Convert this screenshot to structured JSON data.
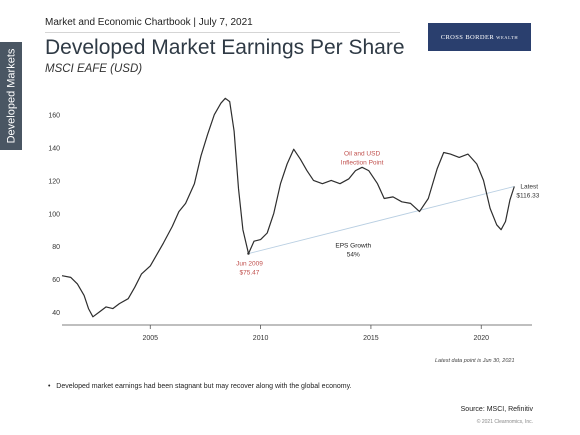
{
  "side_tab": "Developed Markets",
  "header": {
    "chartbook": "Market and Economic Chartbook | July 7, 2021",
    "logo_main": "CROSS BORDER",
    "logo_sub": "WEALTH"
  },
  "chart_data": {
    "type": "line",
    "title": "Developed Market Earnings Per Share",
    "subtitle": "MSCI EAFE (USD)",
    "xlim": [
      2001.0,
      2022.3
    ],
    "ylim": [
      32,
      172
    ],
    "y_ticks": [
      40,
      60,
      80,
      100,
      120,
      140,
      160
    ],
    "x_ticks": [
      2005,
      2010,
      2015,
      2020
    ],
    "grid": false,
    "series": [
      {
        "values": [
          [
            2001.0,
            62
          ],
          [
            2001.4,
            61
          ],
          [
            2001.7,
            57
          ],
          [
            2002.0,
            50
          ],
          [
            2002.2,
            42
          ],
          [
            2002.4,
            37
          ],
          [
            2002.7,
            40
          ],
          [
            2003.0,
            43
          ],
          [
            2003.3,
            42
          ],
          [
            2003.6,
            45
          ],
          [
            2004.0,
            48
          ],
          [
            2004.3,
            55
          ],
          [
            2004.6,
            63
          ],
          [
            2005.0,
            68
          ],
          [
            2005.3,
            75
          ],
          [
            2005.6,
            82
          ],
          [
            2006.0,
            92
          ],
          [
            2006.3,
            101
          ],
          [
            2006.6,
            106
          ],
          [
            2007.0,
            118
          ],
          [
            2007.3,
            135
          ],
          [
            2007.6,
            148
          ],
          [
            2007.9,
            160
          ],
          [
            2008.2,
            167
          ],
          [
            2008.4,
            170
          ],
          [
            2008.6,
            168
          ],
          [
            2008.8,
            150
          ],
          [
            2009.0,
            115
          ],
          [
            2009.2,
            90
          ],
          [
            2009.45,
            75.47
          ],
          [
            2009.7,
            83
          ],
          [
            2010.0,
            84
          ],
          [
            2010.3,
            88
          ],
          [
            2010.6,
            100
          ],
          [
            2010.9,
            118
          ],
          [
            2011.2,
            130
          ],
          [
            2011.5,
            139
          ],
          [
            2011.8,
            133
          ],
          [
            2012.1,
            126
          ],
          [
            2012.4,
            120
          ],
          [
            2012.8,
            118
          ],
          [
            2013.2,
            120
          ],
          [
            2013.6,
            118
          ],
          [
            2014.0,
            121
          ],
          [
            2014.3,
            126
          ],
          [
            2014.6,
            128
          ],
          [
            2014.9,
            126
          ],
          [
            2015.3,
            118
          ],
          [
            2015.6,
            109
          ],
          [
            2016.0,
            110
          ],
          [
            2016.4,
            107
          ],
          [
            2016.8,
            106
          ],
          [
            2017.2,
            101
          ],
          [
            2017.6,
            109
          ],
          [
            2018.0,
            127
          ],
          [
            2018.3,
            137
          ],
          [
            2018.6,
            136
          ],
          [
            2019.0,
            134
          ],
          [
            2019.4,
            136
          ],
          [
            2019.8,
            130
          ],
          [
            2020.1,
            120
          ],
          [
            2020.4,
            103
          ],
          [
            2020.7,
            93
          ],
          [
            2020.9,
            90
          ],
          [
            2021.1,
            95
          ],
          [
            2021.3,
            108
          ],
          [
            2021.5,
            116.33
          ]
        ]
      }
    ],
    "trend_lines": [
      {
        "from": [
          2009.45,
          75.47
        ],
        "to": [
          2021.5,
          116.33
        ],
        "color": "#b9cfe2"
      }
    ],
    "annotations": {
      "jun2009": {
        "label": "Jun 2009",
        "value": "$75.47",
        "color": "#c0504d"
      },
      "inflection": {
        "line1": "Oil and USD",
        "line2": "Inflection Point",
        "color": "#c0504d"
      },
      "eps": {
        "line1": "EPS Growth",
        "line2": "54%",
        "color": "#222222"
      },
      "latest": {
        "line1": "Latest",
        "line2": "$116.33",
        "color": "#333333"
      }
    },
    "line_color": "#2e2e2e",
    "axis_color": "#555555"
  },
  "footer": {
    "latest_note": "Latest data point is Jun 30, 2021",
    "bullet": "Developed market earnings had been stagnant but may recover along with the global economy.",
    "source": "Source: MSCI, Refinitiv",
    "copyright": "© 2021 Clearnomics, Inc."
  }
}
